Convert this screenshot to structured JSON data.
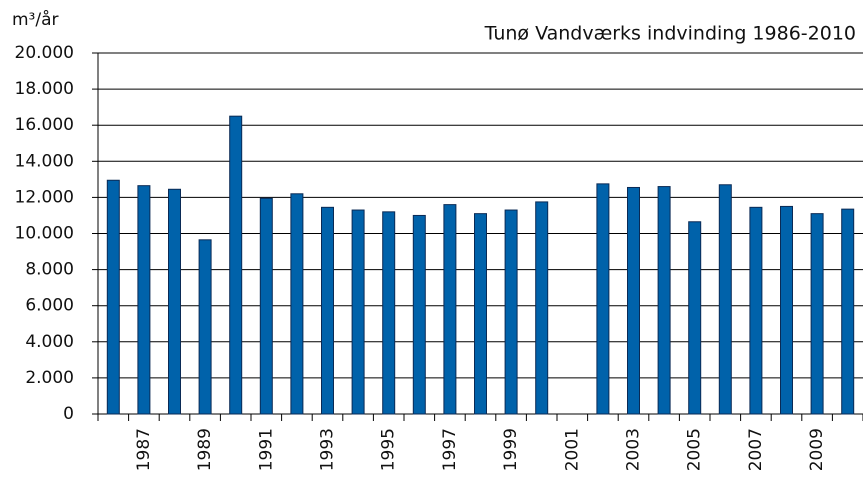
{
  "chart_data": {
    "type": "bar",
    "title": "Tunø Vandværks indvinding 1986-2010",
    "y_label": "m³/år",
    "categories": [
      null,
      "1987",
      null,
      "1989",
      null,
      "1991",
      null,
      "1993",
      null,
      "1995",
      null,
      "1997",
      null,
      "1999",
      null,
      "2001",
      null,
      "2003",
      null,
      "2005",
      null,
      "2007",
      null,
      "2009",
      null
    ],
    "values": [
      12950,
      12650,
      12450,
      9650,
      16500,
      11950,
      12200,
      11450,
      11300,
      11200,
      11000,
      11600,
      11100,
      11300,
      11750,
      null,
      12750,
      12550,
      12600,
      10650,
      12700,
      11450,
      11500,
      11100,
      11350
    ],
    "color": "#0062aa",
    "ylim": [
      0,
      20000
    ],
    "yticks": [
      0,
      {
        "value": 2000,
        "label": "2.000"
      },
      {
        "value": 4000,
        "label": "4.000"
      },
      {
        "value": 6000,
        "label": "6.000"
      },
      {
        "value": 8000,
        "label": "8.000"
      },
      {
        "value": 10000,
        "label": "10.000"
      },
      {
        "value": 12000,
        "label": "12.000"
      },
      {
        "value": 14000,
        "label": "14.000"
      },
      {
        "value": 16000,
        "label": "16.000"
      },
      {
        "value": 18000,
        "label": "18.000"
      },
      {
        "value": 20000,
        "label": "20.000"
      }
    ],
    "grid": true
  }
}
